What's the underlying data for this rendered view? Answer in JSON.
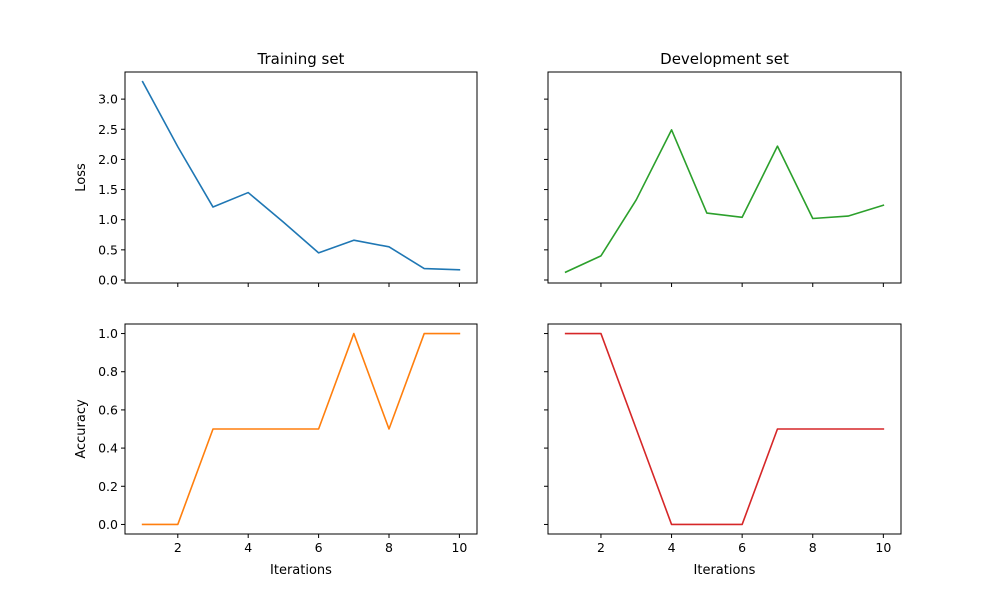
{
  "chart_data": [
    {
      "type": "line",
      "title": "Training set",
      "xlabel": "",
      "ylabel": "Loss",
      "xlim": [
        0.5,
        10.5
      ],
      "ylim": [
        -0.05,
        3.45
      ],
      "xticks": [
        2,
        4,
        6,
        8,
        10
      ],
      "yticks": [
        0.0,
        0.5,
        1.0,
        1.5,
        2.0,
        2.5,
        3.0
      ],
      "show_x_tick_labels": false,
      "show_y_tick_labels": true,
      "x": [
        1,
        2,
        3,
        4,
        5,
        6,
        7,
        8,
        9,
        10
      ],
      "series": [
        {
          "values": [
            3.29,
            2.21,
            1.21,
            1.45,
            0.96,
            0.45,
            0.66,
            0.55,
            0.19,
            0.17
          ],
          "color": "#1f77b4"
        }
      ]
    },
    {
      "type": "line",
      "title": "Development set",
      "xlabel": "",
      "ylabel": "",
      "xlim": [
        0.5,
        10.5
      ],
      "ylim": [
        -0.05,
        3.45
      ],
      "xticks": [
        2,
        4,
        6,
        8,
        10
      ],
      "yticks": [
        0.0,
        0.5,
        1.0,
        1.5,
        2.0,
        2.5,
        3.0
      ],
      "show_x_tick_labels": false,
      "show_y_tick_labels": false,
      "x": [
        1,
        2,
        3,
        4,
        5,
        6,
        7,
        8,
        9,
        10
      ],
      "series": [
        {
          "values": [
            0.13,
            0.4,
            1.33,
            2.49,
            1.11,
            1.04,
            2.22,
            1.02,
            1.06,
            1.24
          ],
          "color": "#2ca02c"
        }
      ]
    },
    {
      "type": "line",
      "title": "",
      "xlabel": "Iterations",
      "ylabel": "Accuracy",
      "xlim": [
        0.5,
        10.5
      ],
      "ylim": [
        -0.05,
        1.05
      ],
      "xticks": [
        2,
        4,
        6,
        8,
        10
      ],
      "yticks": [
        0.0,
        0.2,
        0.4,
        0.6,
        0.8,
        1.0
      ],
      "show_x_tick_labels": true,
      "show_y_tick_labels": true,
      "x": [
        1,
        2,
        3,
        4,
        5,
        6,
        7,
        8,
        9,
        10
      ],
      "series": [
        {
          "values": [
            0.0,
            0.0,
            0.5,
            0.5,
            0.5,
            0.5,
            1.0,
            0.5,
            1.0,
            1.0
          ],
          "color": "#ff7f0e"
        }
      ]
    },
    {
      "type": "line",
      "title": "",
      "xlabel": "Iterations",
      "ylabel": "",
      "xlim": [
        0.5,
        10.5
      ],
      "ylim": [
        -0.05,
        1.05
      ],
      "xticks": [
        2,
        4,
        6,
        8,
        10
      ],
      "yticks": [
        0.0,
        0.2,
        0.4,
        0.6,
        0.8,
        1.0
      ],
      "show_x_tick_labels": true,
      "show_y_tick_labels": false,
      "x": [
        1,
        2,
        3,
        4,
        5,
        6,
        7,
        8,
        9,
        10
      ],
      "series": [
        {
          "values": [
            1.0,
            1.0,
            0.5,
            0.0,
            0.0,
            0.0,
            0.5,
            0.5,
            0.5,
            0.5
          ],
          "color": "#d62728"
        }
      ]
    }
  ]
}
